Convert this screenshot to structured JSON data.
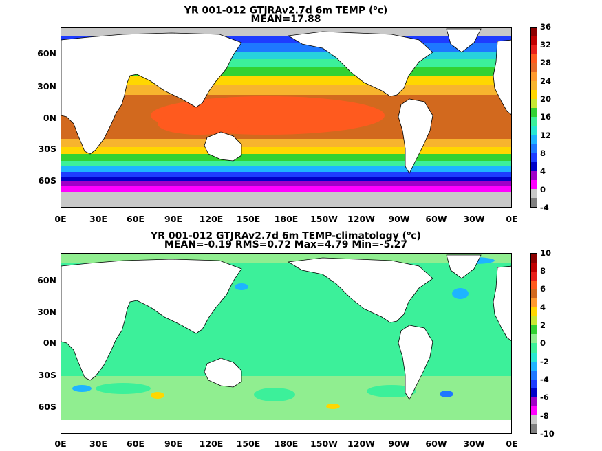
{
  "top": {
    "title_line1": "YR 001-012 GTJRAv2.7d 6m TEMP (",
    "title_sup": "o",
    "title_line1_end": "c)",
    "title_line2": "MEAN=17.88",
    "colorbar_labels": [
      "36",
      "32",
      "28",
      "24",
      "20",
      "16",
      "12",
      "8",
      "4",
      "0",
      "-4"
    ],
    "colorbar_colors": [
      "#8b0000",
      "#c00000",
      "#e8201a",
      "#ff5a1e",
      "#e86a28",
      "#ff9a2e",
      "#f7b42e",
      "#ffd700",
      "#c8e832",
      "#32d232",
      "#3cf09a",
      "#28e8d2",
      "#1eb4ff",
      "#1e78ff",
      "#1e3cff",
      "#0000c8",
      "#a000c8",
      "#ff00ff",
      "#c8c8c8",
      "#808080"
    ],
    "ocean_colors": {
      "south_cold": "#ff00ff",
      "south_blue": "#1e3cff",
      "south_cyan": "#28e8d2",
      "south_green": "#32d232",
      "south_yellow": "#f7b42e",
      "tropics": "#d2691e",
      "warm_pool": "#ff5a1e",
      "north_yellow": "#ffd700",
      "north_green": "#32d232",
      "north_cyan": "#28d2dc",
      "north_blue": "#1e78ff",
      "ice": "#c8c8c8"
    }
  },
  "bottom": {
    "title_line1": "YR 001-012 GTJRAv2.7d 6m TEMP-climatology (",
    "title_sup": "o",
    "title_line1_end": "c)",
    "title_line2": "MEAN=-0.19   RMS=0.72   Max=4.79   Min=-5.27",
    "colorbar_labels": [
      "10",
      "8",
      "6",
      "4",
      "2",
      "0",
      "-2",
      "-4",
      "-6",
      "-8",
      "-10"
    ],
    "colorbar_colors": [
      "#8b0000",
      "#c00000",
      "#e8201a",
      "#ff5a1e",
      "#d2691e",
      "#ff9a2e",
      "#ffd700",
      "#c8e832",
      "#32d232",
      "#90ee90",
      "#3cf09a",
      "#28e8d2",
      "#1eb4ff",
      "#1e78ff",
      "#1e3cff",
      "#0000c8",
      "#a000c8",
      "#ff00ff",
      "#c8c8c8",
      "#808080"
    ],
    "ocean_colors": {
      "background": "#3cf09a",
      "light": "#90ee90",
      "blue": "#1eb4ff",
      "yellow": "#ffd700"
    }
  },
  "axes": {
    "y_labels": [
      "60N",
      "30N",
      "0N",
      "30S",
      "60S"
    ],
    "x_labels": [
      "0E",
      "30E",
      "60E",
      "90E",
      "120E",
      "150E",
      "180E",
      "150W",
      "120W",
      "90W",
      "60W",
      "30W",
      "0E"
    ]
  }
}
